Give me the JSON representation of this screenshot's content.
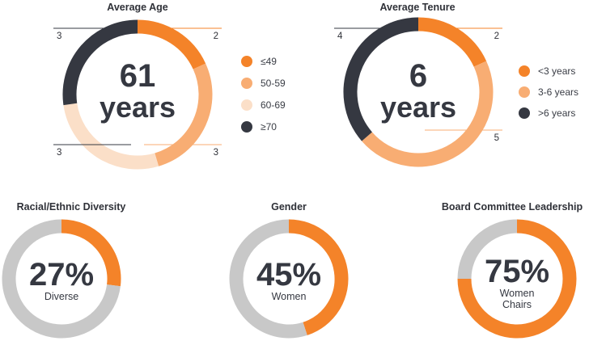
{
  "colors": {
    "orange": "#f48329",
    "light_orange": "#f8ad73",
    "pale": "#fbdfc8",
    "dark": "#353841",
    "gray": "#c8c8c8"
  },
  "chart_data": [
    {
      "type": "pie",
      "title": "Average Age",
      "center_value": "61",
      "center_label": "years",
      "categories": [
        "≤49",
        "50-59",
        "60-69",
        "≥70"
      ],
      "values": [
        2,
        3,
        3,
        3
      ],
      "colors": [
        "#f48329",
        "#f8ad73",
        "#fbdfc8",
        "#353841"
      ],
      "legend": "right"
    },
    {
      "type": "pie",
      "title": "Average Tenure",
      "center_value": "6",
      "center_label": "years",
      "categories": [
        "<3 years",
        "3-6 years",
        ">6 years"
      ],
      "values": [
        2,
        5,
        4
      ],
      "colors": [
        "#f48329",
        "#f8ad73",
        "#353841"
      ],
      "legend": "right"
    },
    {
      "type": "pie",
      "title": "Racial/Ethnic Diversity",
      "center_value": "27%",
      "center_label": "Diverse",
      "values": [
        27,
        73
      ],
      "colors": [
        "#f48329",
        "#c8c8c8"
      ]
    },
    {
      "type": "pie",
      "title": "Gender",
      "center_value": "45%",
      "center_label": "Women",
      "values": [
        45,
        55
      ],
      "colors": [
        "#f48329",
        "#c8c8c8"
      ]
    },
    {
      "type": "pie",
      "title": "Board Committee Leadership",
      "center_value": "75%",
      "center_label": "Women Chairs",
      "values": [
        75,
        25
      ],
      "colors": [
        "#f48329",
        "#c8c8c8"
      ]
    }
  ]
}
